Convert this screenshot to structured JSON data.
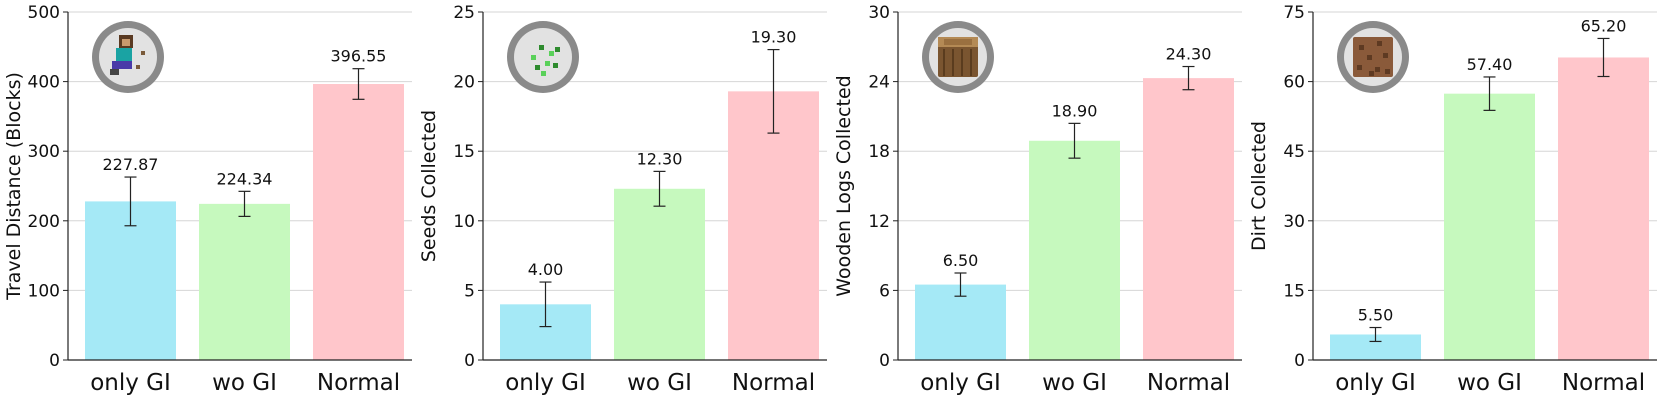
{
  "chart_data": [
    {
      "type": "bar",
      "categories": [
        "only GI",
        "wo GI",
        "Normal"
      ],
      "values": [
        227.87,
        224.34,
        396.55
      ],
      "value_labels": [
        "227.87",
        "224.34",
        "396.55"
      ],
      "errors": [
        35,
        18,
        22
      ],
      "colors": [
        "#a5e9f6",
        "#c6f9be",
        "#ffc6cb"
      ],
      "ylabel": "Travel Distance (Blocks)",
      "ylim": [
        0,
        500
      ],
      "yticks": [
        0,
        100,
        200,
        300,
        400,
        500
      ],
      "icon": "steve-character-icon",
      "grid": "horizontal"
    },
    {
      "type": "bar",
      "categories": [
        "only GI",
        "wo GI",
        "Normal"
      ],
      "values": [
        4.0,
        12.3,
        19.3
      ],
      "value_labels": [
        "4.00",
        "12.30",
        "19.30"
      ],
      "errors": [
        1.6,
        1.25,
        3.0
      ],
      "colors": [
        "#a5e9f6",
        "#c6f9be",
        "#ffc6cb"
      ],
      "ylabel": "Seeds Collected",
      "ylim": [
        0,
        25
      ],
      "yticks": [
        0,
        5,
        10,
        15,
        20,
        25
      ],
      "icon": "seeds-icon",
      "grid": "horizontal"
    },
    {
      "type": "bar",
      "categories": [
        "only GI",
        "wo GI",
        "Normal"
      ],
      "values": [
        6.5,
        18.9,
        24.3
      ],
      "value_labels": [
        "6.50",
        "18.90",
        "24.30"
      ],
      "errors": [
        1.0,
        1.5,
        1.0
      ],
      "colors": [
        "#a5e9f6",
        "#c6f9be",
        "#ffc6cb"
      ],
      "ylabel": "Wooden Logs Collected",
      "ylim": [
        0,
        30
      ],
      "yticks": [
        0,
        6,
        12,
        18,
        24,
        30
      ],
      "icon": "wooden-log-icon",
      "grid": "horizontal"
    },
    {
      "type": "bar",
      "categories": [
        "only GI",
        "wo GI",
        "Normal"
      ],
      "values": [
        5.5,
        57.4,
        65.2
      ],
      "value_labels": [
        "5.50",
        "57.40",
        "65.20"
      ],
      "errors": [
        1.5,
        3.6,
        4.1
      ],
      "colors": [
        "#a5e9f6",
        "#c6f9be",
        "#ffc6cb"
      ],
      "ylabel": "Dirt Collected",
      "ylim": [
        0,
        75
      ],
      "yticks": [
        0,
        15,
        30,
        45,
        60,
        75
      ],
      "icon": "dirt-block-icon",
      "grid": "horizontal"
    }
  ]
}
